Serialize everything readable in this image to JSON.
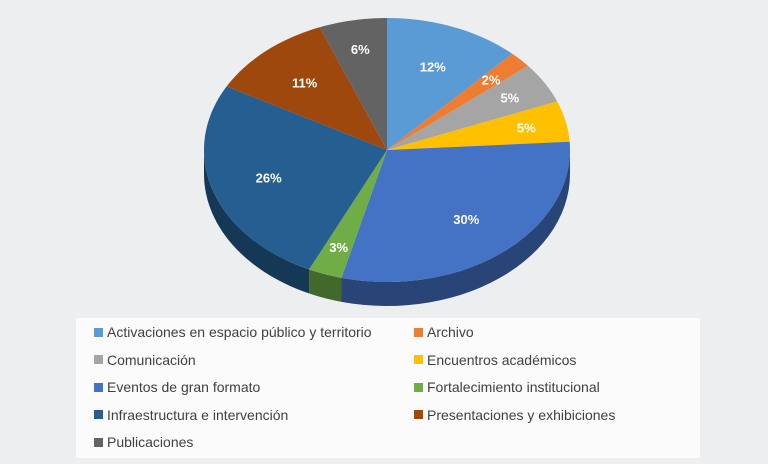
{
  "chart_data": {
    "type": "pie",
    "style": "3d",
    "categories": [
      "Activaciones en espacio público y territorio",
      "Archivo",
      "Comunicación",
      "Encuentros académicos",
      "Eventos de gran formato",
      "Fortalecimiento institucional",
      "Infraestructura e intervención",
      "Presentaciones y exhibiciones",
      "Publicaciones"
    ],
    "values": [
      12,
      2,
      5,
      5,
      30,
      3,
      26,
      11,
      6
    ],
    "data_labels": [
      "12%",
      "2%",
      "5%",
      "5%",
      "30%",
      "3%",
      "26%",
      "11%",
      "6%"
    ],
    "colors": [
      "#5B9BD5",
      "#ED7D31",
      "#A5A5A5",
      "#FFC000",
      "#4472C4",
      "#70AD47",
      "#255E91",
      "#9E480E",
      "#636363"
    ],
    "legend_placement": "bottom"
  }
}
